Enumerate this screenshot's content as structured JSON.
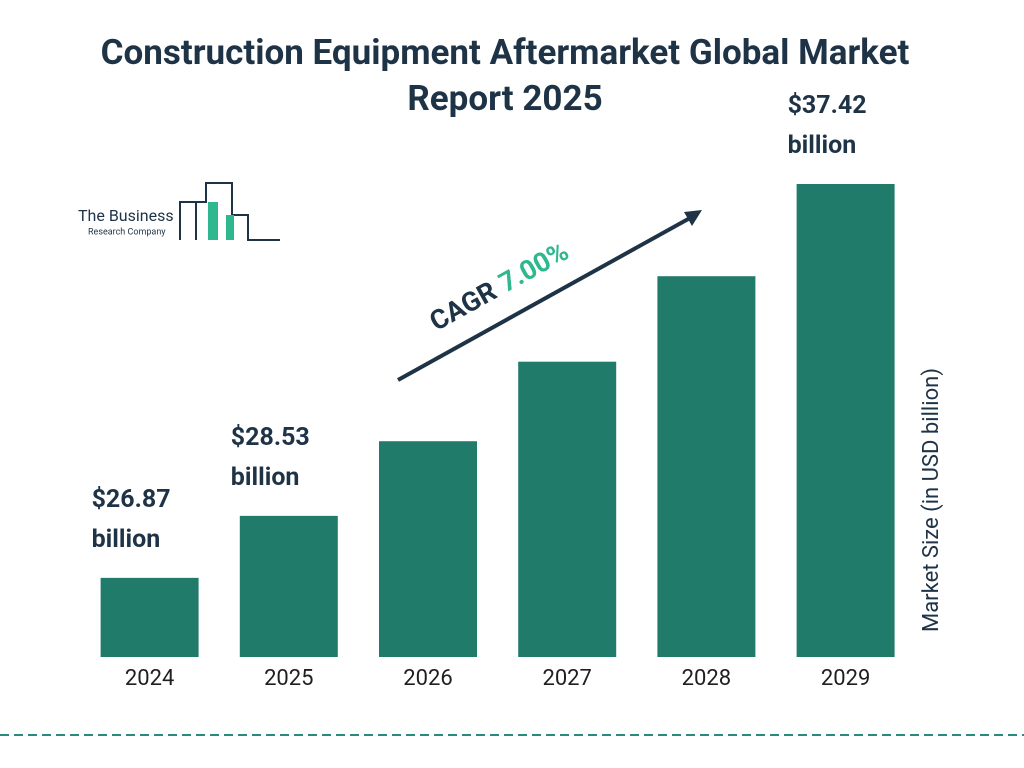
{
  "chart_data": {
    "type": "bar",
    "title": "Construction Equipment Aftermarket Global Market Report 2025",
    "categories": [
      "2024",
      "2025",
      "2026",
      "2027",
      "2028",
      "2029"
    ],
    "values": [
      26.87,
      28.53,
      30.53,
      32.66,
      34.95,
      37.42
    ],
    "value_labels": [
      "$26.87 billion",
      "$28.53 billion",
      null,
      null,
      null,
      "$37.42 billion"
    ],
    "color": "#217b6b",
    "ylim": [
      24.75,
      37.42
    ],
    "y_axis_label": "Market Size (in USD billion)",
    "cagr_label": "CAGR",
    "cagr_value": "7.00%",
    "logo": {
      "line1": "The Business",
      "line2": "Research Company"
    }
  }
}
